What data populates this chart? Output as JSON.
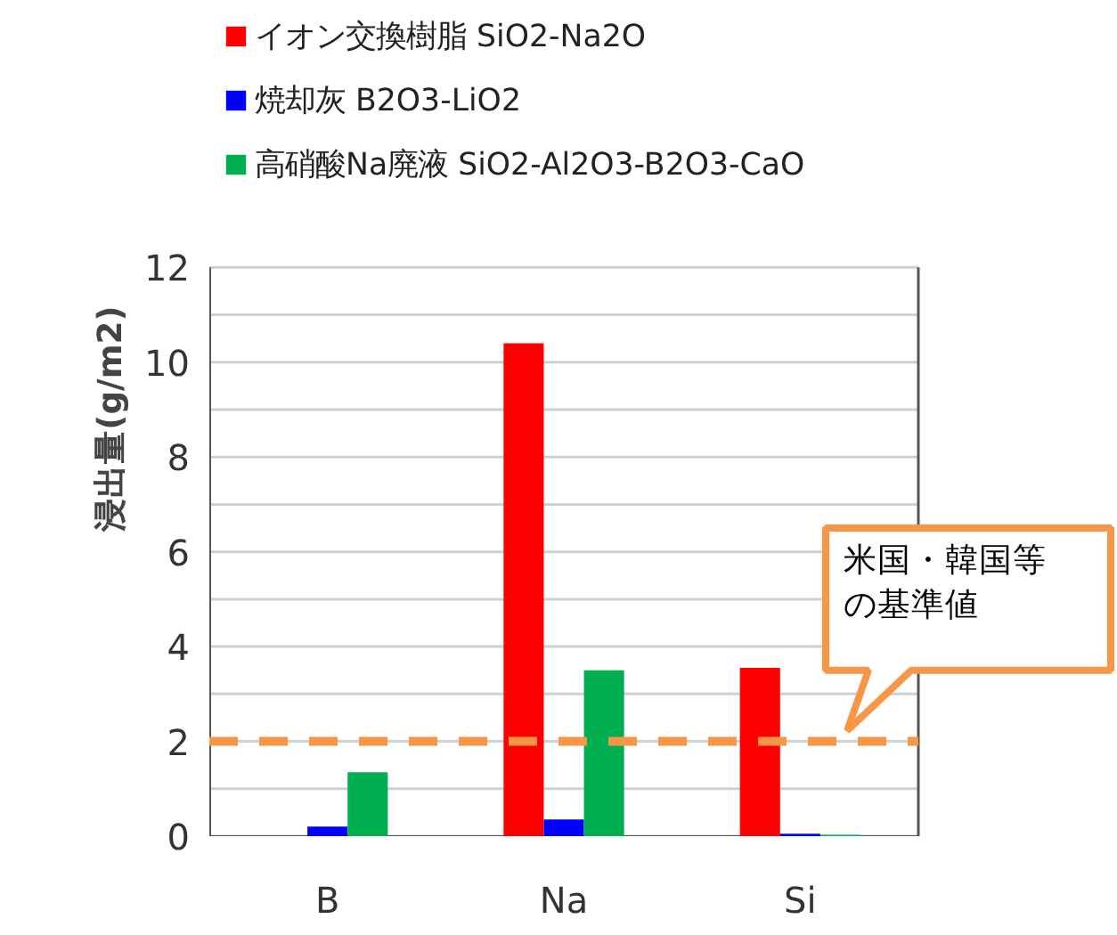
{
  "chart_data": {
    "type": "bar",
    "ylabel": "浸出量(g/m2)",
    "categories": [
      "B",
      "Na",
      "Si"
    ],
    "series": [
      {
        "name": "イオン交換樹脂 SiO2-Na2O",
        "color": "#ff0000",
        "values": [
          0,
          10.4,
          3.55
        ]
      },
      {
        "name": "焼却灰 B2O3-LiO2",
        "color": "#0000ff",
        "values": [
          0.2,
          0.35,
          0.05
        ]
      },
      {
        "name": "高硝酸Na廃液 SiO2-Al2O3-B2O3-CaO",
        "color": "#00b050",
        "values": [
          1.35,
          3.5,
          0.03
        ]
      }
    ],
    "ylim": [
      0,
      12
    ],
    "yticks": [
      0,
      {
        "value": 1,
        "label": null
      },
      2,
      {
        "value": 3,
        "label": null
      },
      4,
      {
        "value": 5,
        "label": null
      },
      6,
      {
        "value": 7,
        "label": null
      },
      8,
      {
        "value": 9,
        "label": null
      },
      10,
      {
        "value": 11,
        "label": null
      },
      12
    ],
    "grid": "y",
    "legend": "top left",
    "ref_lines": [
      {
        "axis": "y",
        "value": 2,
        "color": "#f79646",
        "line_style": "dashed"
      }
    ],
    "annotations": [
      "米国・韓国等の基準値"
    ]
  }
}
